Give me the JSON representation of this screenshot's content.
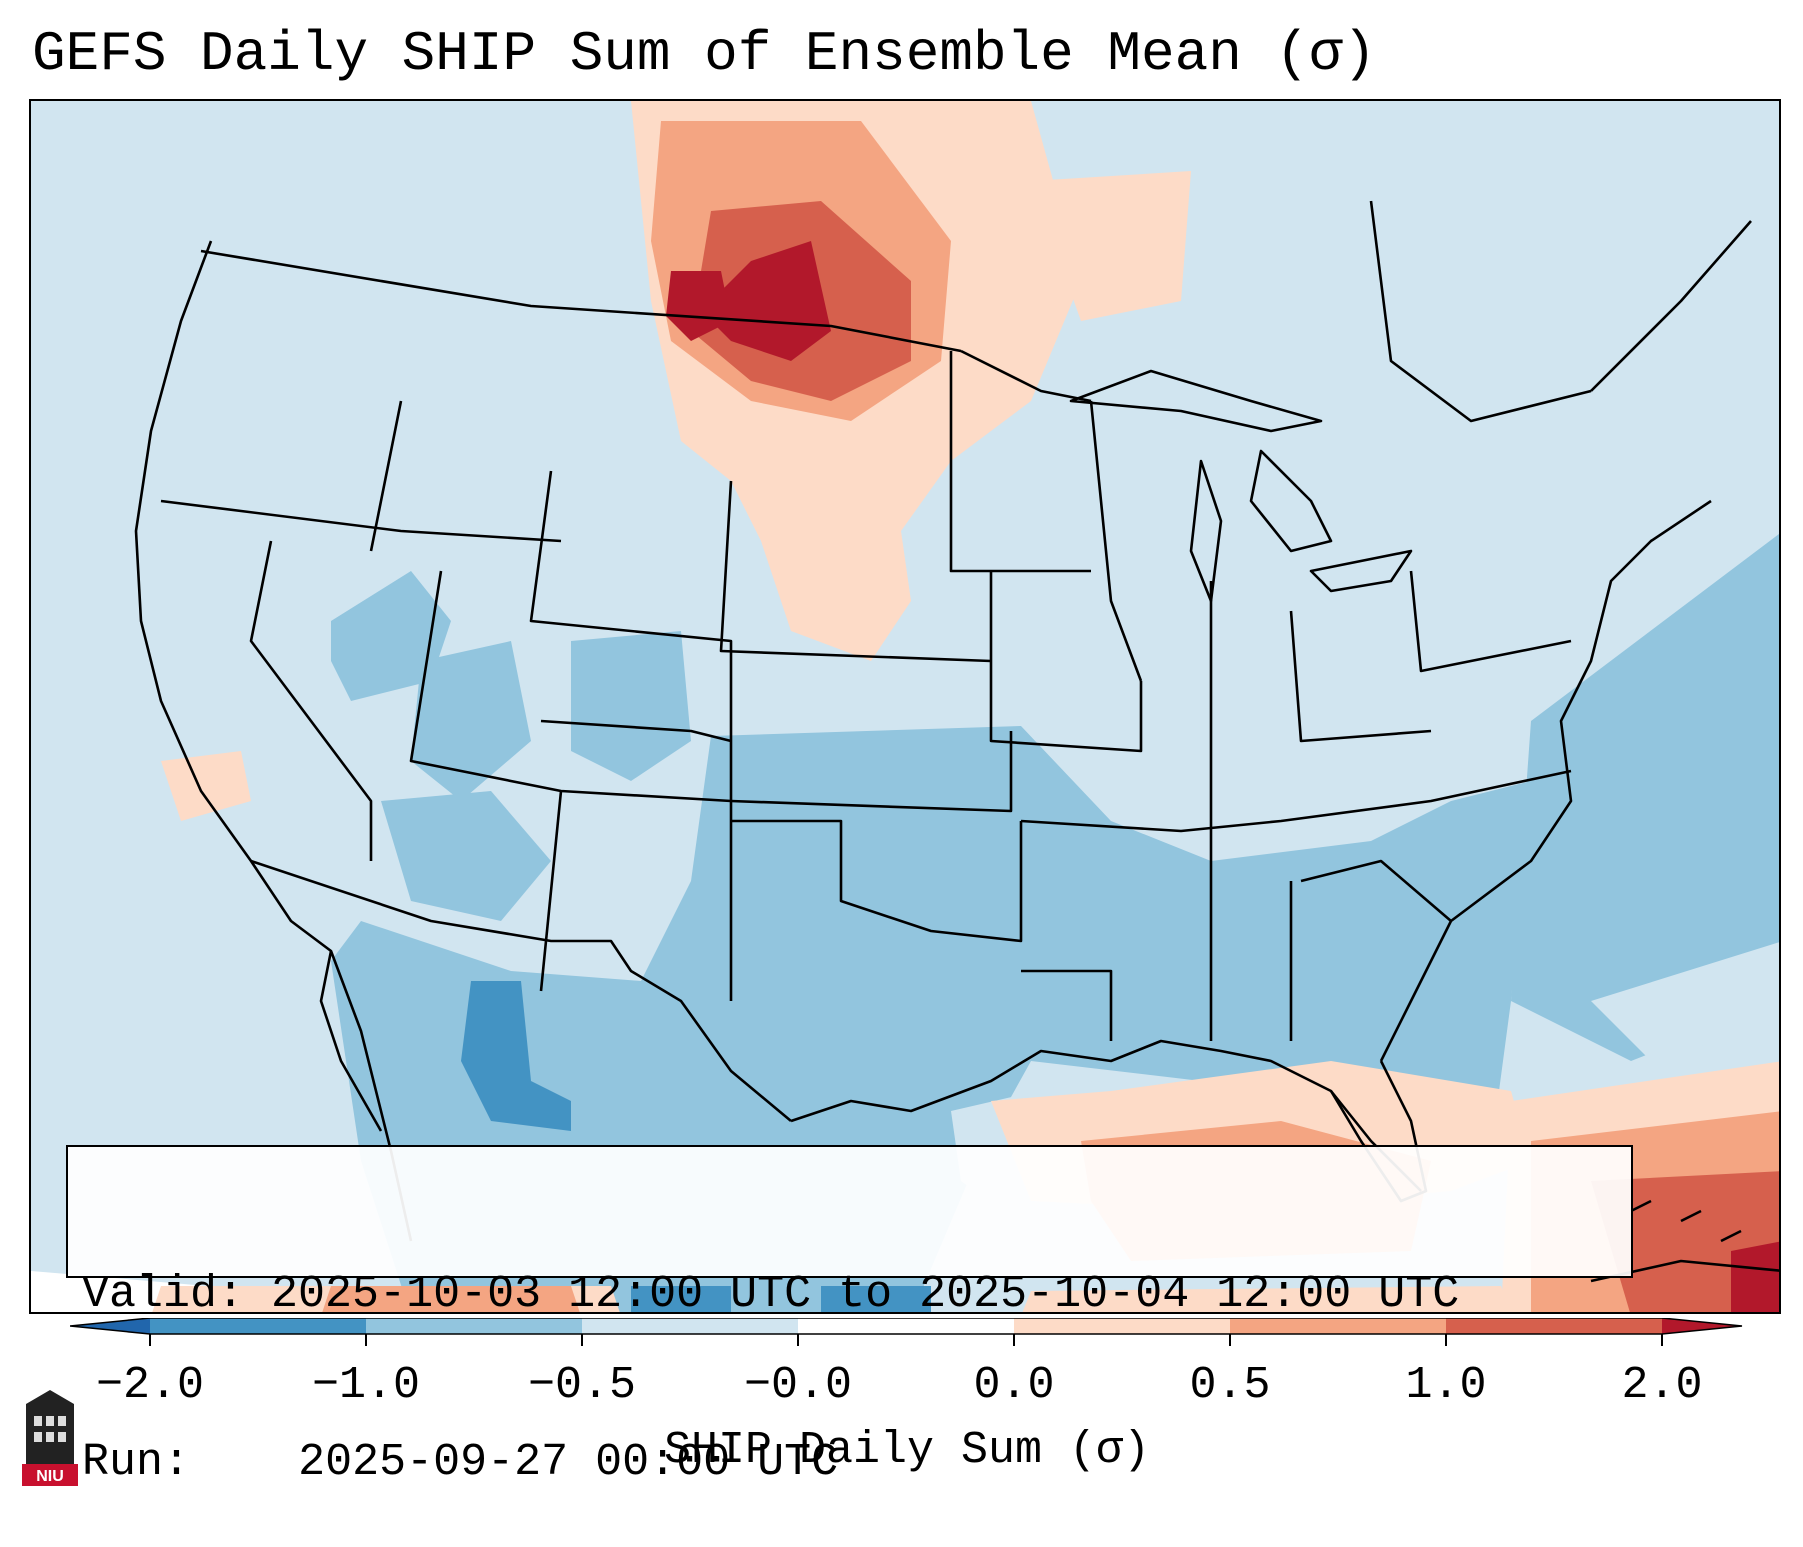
{
  "title": "GEFS Daily SHIP Sum of Ensemble Mean (σ)",
  "info": {
    "valid_label": "Valid:",
    "valid_value": "2025-10-03 12:00 UTC to 2025-10-04 12:00 UTC",
    "run_label": "Run:",
    "run_value": "2025-09-27 00:00 UTC"
  },
  "colorbar": {
    "label": "SHIP Daily Sum (σ)",
    "ticks": [
      "−2.0",
      "−1.0",
      "−0.5",
      "−0.0",
      "0.0",
      "0.5",
      "1.0",
      "2.0"
    ],
    "colors": [
      "#4393c3",
      "#92c5de",
      "#d1e5f0",
      "#ffffff",
      "#fddbc7",
      "#f4a582",
      "#d6604d"
    ],
    "extend_min_color": "#2166ac",
    "extend_max_color": "#b2182b"
  },
  "legend_colors": {
    "strong_negative": "#4393c3",
    "moderate_negative": "#92c5de",
    "weak_negative": "#d1e5f0",
    "weak_positive": "#fddbc7",
    "moderate_positive": "#f4a582",
    "strong_positive": "#d6604d",
    "extreme_positive": "#b2182b"
  },
  "logo": {
    "text": "NIU",
    "icon": "university-tower-icon"
  }
}
